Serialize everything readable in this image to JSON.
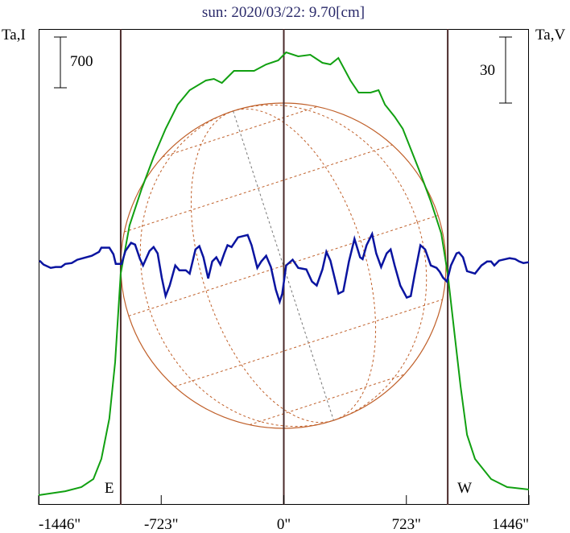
{
  "chart_data": {
    "type": "line",
    "title": "sun: 2020/03/22: 9.70[cm]",
    "left_axis_label": "Ta,I",
    "right_axis_label": "Ta,V",
    "xlim": [
      -1446,
      1446
    ],
    "x_ticks": [
      -1446,
      -723,
      0,
      723,
      1446
    ],
    "x_tick_labels": [
      "-1446\"",
      "-723\"",
      "0\"",
      "723\"",
      "1446\""
    ],
    "limb_markers": [
      {
        "label": "E",
        "x": -962
      },
      {
        "label": "W",
        "x": 967
      }
    ],
    "scale_bars": {
      "I": {
        "value": 700,
        "label": "700"
      },
      "V": {
        "value": 30,
        "label": "30"
      }
    },
    "colors": {
      "I": "#11a011",
      "V": "#0a14a0",
      "limb": "#4a2a2a",
      "sun": "#c0602a",
      "title": "#2a2a6a"
    },
    "series": [
      {
        "name": "Ta,I",
        "axis": "left",
        "ylim": [
          -133,
          6427
        ],
        "x": [
          -1446,
          -1289,
          -1194,
          -1123,
          -1076,
          -1029,
          -995,
          -962,
          -910,
          -839,
          -768,
          -697,
          -626,
          -555,
          -460,
          -412,
          -365,
          -294,
          -175,
          -104,
          -33,
          14,
          85,
          156,
          228,
          275,
          322,
          393,
          441,
          512,
          559,
          597,
          654,
          702,
          749,
          796,
          867,
          929,
          967,
          1010,
          1043,
          1081,
          1128,
          1223,
          1318,
          1446
        ],
        "y": [
          0,
          55,
          111,
          222,
          500,
          1055,
          1832,
          3053,
          3719,
          4218,
          4662,
          5051,
          5384,
          5583,
          5717,
          5739,
          5683,
          5850,
          5850,
          5939,
          5994,
          6105,
          6050,
          6072,
          5961,
          5939,
          6027,
          5717,
          5550,
          5550,
          5583,
          5384,
          5217,
          5051,
          4773,
          4496,
          4052,
          3608,
          3053,
          2165,
          1499,
          833,
          500,
          222,
          111,
          78
        ]
      },
      {
        "name": "Ta,V",
        "axis": "right",
        "ylim": [
          -110,
          106.5
        ],
        "x": [
          -1441,
          -1417,
          -1375,
          -1346,
          -1313,
          -1289,
          -1251,
          -1218,
          -1185,
          -1133,
          -1090,
          -1076,
          -1029,
          -1005,
          -991,
          -957,
          -934,
          -901,
          -877,
          -848,
          -830,
          -792,
          -768,
          -744,
          -720,
          -697,
          -673,
          -640,
          -616,
          -578,
          -555,
          -521,
          -498,
          -474,
          -446,
          -422,
          -398,
          -374,
          -351,
          -332,
          -308,
          -270,
          -213,
          -190,
          -156,
          -133,
          -104,
          -76,
          -47,
          -24,
          -9,
          14,
          52,
          85,
          133,
          166,
          194,
          228,
          251,
          275,
          299,
          322,
          351,
          384,
          417,
          450,
          465,
          488,
          521,
          545,
          574,
          607,
          630,
          654,
          687,
          725,
          749,
          773,
          806,
          834,
          867,
          901,
          920,
          939,
          962,
          986,
          1019,
          1033,
          1057,
          1081,
          1128,
          1166,
          1199,
          1223,
          1242,
          1270,
          1308,
          1332,
          1365,
          1389,
          1413,
          1446
        ],
        "y": [
          1.1,
          -0.7,
          -2.2,
          -1.8,
          -1.8,
          -0.4,
          0,
          1.5,
          2.2,
          3.3,
          5.1,
          7.0,
          7.0,
          4.0,
          -0.4,
          -0.4,
          5.5,
          9.2,
          8.4,
          1.8,
          -1.1,
          5.5,
          7.3,
          4.4,
          -6.6,
          -15.0,
          -10.2,
          -1.1,
          -3.3,
          -3.3,
          -4.8,
          6.2,
          7.7,
          2.6,
          -7.0,
          0.7,
          2.6,
          -0.7,
          4.4,
          8.1,
          7.3,
          11.7,
          12.8,
          8.1,
          -2.2,
          0.7,
          3.3,
          -1.8,
          -12.1,
          -17.6,
          -13.9,
          -1.1,
          1.5,
          -2.2,
          -2.9,
          -8.4,
          -10.2,
          -2.9,
          5.1,
          1.1,
          -6.6,
          -13.9,
          -12.8,
          0.7,
          11.0,
          2.6,
          1.8,
          8.1,
          13.2,
          4.4,
          -1.8,
          4.4,
          6.2,
          -1.1,
          -10.2,
          -15.7,
          -15.0,
          -4.8,
          8.1,
          6.2,
          -1.1,
          -2.2,
          -4.0,
          -6.6,
          -8.4,
          -1.1,
          4.4,
          4.8,
          2.6,
          -3.7,
          -4.8,
          -1.1,
          0.7,
          0.7,
          -1.1,
          1.1,
          1.8,
          2.2,
          1.8,
          0.7,
          0,
          0.4
        ]
      }
    ]
  }
}
